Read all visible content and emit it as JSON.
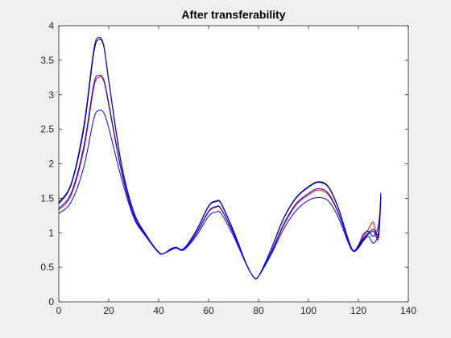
{
  "chart_data": {
    "type": "line",
    "title": "After transferability",
    "xlabel": "",
    "ylabel": "",
    "xlim": [
      0,
      140
    ],
    "ylim": [
      0,
      4
    ],
    "xticks": [
      0,
      20,
      40,
      60,
      80,
      100,
      120,
      140
    ],
    "yticks": [
      0,
      0.5,
      1,
      1.5,
      2,
      2.5,
      3,
      3.5,
      4
    ],
    "grid": false,
    "legend": "none",
    "colors": {
      "red_series": "#ff0000",
      "blue_series": "#0000ff",
      "black_series": "#000000",
      "axes_bg": "#ffffff",
      "figure_bg": "#f0f0f0"
    },
    "series": [
      {
        "color": "red",
        "x": [
          0,
          5,
          10,
          14,
          16,
          18,
          20,
          25,
          30,
          35,
          40,
          42,
          45,
          47,
          50,
          55,
          60,
          63,
          65,
          70,
          75,
          78,
          80,
          85,
          90,
          95,
          100,
          104,
          108,
          112,
          116,
          118,
          120,
          122,
          124,
          126,
          128,
          129
        ],
        "y": [
          1.33,
          1.55,
          2.2,
          3.1,
          3.25,
          3.2,
          2.85,
          1.9,
          1.25,
          0.95,
          0.72,
          0.7,
          0.76,
          0.78,
          0.76,
          0.98,
          1.3,
          1.37,
          1.34,
          0.98,
          0.55,
          0.36,
          0.37,
          0.7,
          1.1,
          1.4,
          1.55,
          1.62,
          1.55,
          1.28,
          0.88,
          0.74,
          0.8,
          0.95,
          1.05,
          1.15,
          0.9,
          1.45
        ]
      },
      {
        "color": "black",
        "x": [
          0,
          5,
          10,
          14,
          16,
          18,
          20,
          25,
          30,
          35,
          40,
          42,
          45,
          47,
          50,
          55,
          60,
          63,
          65,
          70,
          75,
          78,
          80,
          85,
          90,
          95,
          100,
          104,
          108,
          112,
          116,
          118,
          120,
          122,
          124,
          126,
          128,
          129
        ],
        "y": [
          1.42,
          1.7,
          2.5,
          3.6,
          3.8,
          3.7,
          3.2,
          2.0,
          1.3,
          0.96,
          0.72,
          0.7,
          0.77,
          0.79,
          0.77,
          1.02,
          1.38,
          1.45,
          1.42,
          1.02,
          0.56,
          0.36,
          0.37,
          0.75,
          1.2,
          1.5,
          1.66,
          1.73,
          1.66,
          1.35,
          0.9,
          0.74,
          0.8,
          0.92,
          1.0,
          1.05,
          1.0,
          1.55
        ]
      },
      {
        "color": "blue",
        "x": [
          0,
          5,
          10,
          14,
          16,
          18,
          20,
          25,
          30,
          35,
          40,
          42,
          45,
          47,
          50,
          55,
          60,
          63,
          65,
          70,
          75,
          78,
          80,
          85,
          90,
          95,
          100,
          104,
          108,
          112,
          116,
          118,
          120,
          122,
          124,
          126,
          128,
          129
        ],
        "y": [
          1.28,
          1.45,
          1.95,
          2.65,
          2.77,
          2.74,
          2.52,
          1.8,
          1.22,
          0.94,
          0.71,
          0.7,
          0.75,
          0.78,
          0.75,
          0.95,
          1.24,
          1.3,
          1.28,
          0.95,
          0.55,
          0.36,
          0.37,
          0.68,
          1.05,
          1.32,
          1.47,
          1.51,
          1.46,
          1.22,
          0.85,
          0.73,
          0.78,
          0.88,
          0.95,
          0.85,
          1.0,
          1.52
        ]
      },
      {
        "color": "blue",
        "x": [
          0,
          5,
          10,
          14,
          16,
          18,
          20,
          25,
          30,
          35,
          40,
          42,
          45,
          47,
          50,
          55,
          60,
          63,
          65,
          70,
          75,
          78,
          80,
          85,
          90,
          95,
          100,
          104,
          108,
          112,
          116,
          118,
          120,
          122,
          124,
          126,
          128,
          129
        ],
        "y": [
          1.35,
          1.58,
          2.25,
          3.15,
          3.28,
          3.22,
          2.88,
          1.92,
          1.26,
          0.95,
          0.72,
          0.7,
          0.76,
          0.78,
          0.76,
          0.99,
          1.31,
          1.38,
          1.35,
          0.99,
          0.55,
          0.36,
          0.37,
          0.71,
          1.12,
          1.42,
          1.57,
          1.64,
          1.57,
          1.29,
          0.88,
          0.74,
          0.82,
          0.98,
          1.02,
          0.95,
          1.1,
          1.5
        ]
      },
      {
        "color": "blue",
        "x": [
          0,
          5,
          10,
          14,
          16,
          18,
          20,
          25,
          30,
          35,
          40,
          42,
          45,
          47,
          50,
          55,
          60,
          63,
          65,
          70,
          75,
          78,
          80,
          85,
          90,
          95,
          100,
          104,
          108,
          112,
          116,
          118,
          120,
          122,
          124,
          126,
          128,
          129
        ],
        "y": [
          1.44,
          1.72,
          2.55,
          3.65,
          3.83,
          3.72,
          3.22,
          2.02,
          1.31,
          0.97,
          0.72,
          0.7,
          0.77,
          0.79,
          0.77,
          1.03,
          1.39,
          1.46,
          1.43,
          1.03,
          0.56,
          0.36,
          0.37,
          0.76,
          1.21,
          1.51,
          1.67,
          1.74,
          1.67,
          1.36,
          0.9,
          0.74,
          0.78,
          0.9,
          0.98,
          1.02,
          0.95,
          1.58
        ]
      }
    ]
  }
}
